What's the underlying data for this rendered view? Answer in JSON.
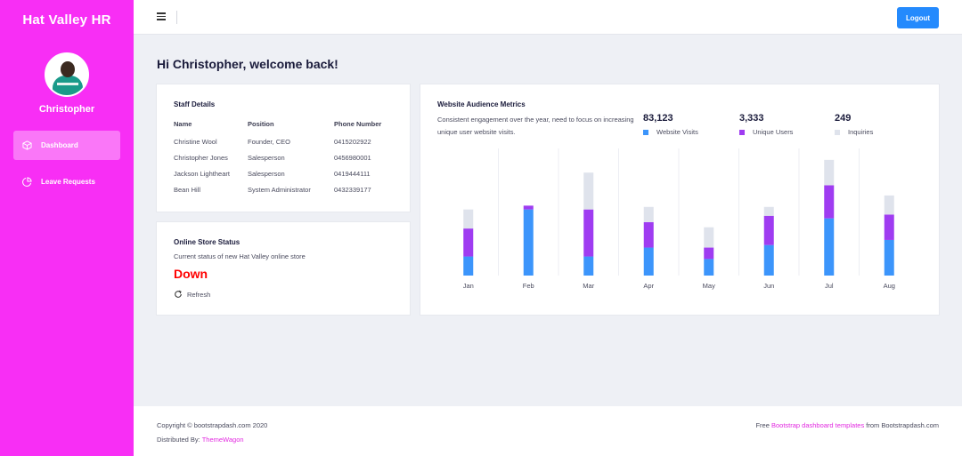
{
  "sidebar": {
    "brand": "Hat Valley HR",
    "username": "Christopher",
    "items": [
      {
        "label": "Dashboard",
        "icon": "cube-icon",
        "active": true
      },
      {
        "label": "Leave Requests",
        "icon": "pie-chart-icon",
        "active": false
      }
    ]
  },
  "header": {
    "logout_label": "Logout"
  },
  "welcome": "Hi Christopher, welcome back!",
  "staff": {
    "title": "Staff Details",
    "columns": [
      "Name",
      "Position",
      "Phone Number"
    ],
    "rows": [
      [
        "Christine Wool",
        "Founder, CEO",
        "0415202922"
      ],
      [
        "Christopher Jones",
        "Salesperson",
        "0456980001"
      ],
      [
        "Jackson Lightheart",
        "Salesperson",
        "0419444111"
      ],
      [
        "Bean Hill",
        "System Administrator",
        "0432339177"
      ]
    ]
  },
  "store": {
    "title": "Online Store Status",
    "description": "Current status of new Hat Valley online store",
    "status": "Down",
    "status_color": "#ff0000",
    "refresh_label": "Refresh"
  },
  "metrics": {
    "title": "Website Audience Metrics",
    "description": "Consistent engagement over the year, need to focus on increasing unique user website visits.",
    "stats": [
      {
        "value": "83,123",
        "label": "Website Visits",
        "color": "#3c95fb"
      },
      {
        "value": "3,333",
        "label": "Unique Users",
        "color": "#9f3cf1"
      },
      {
        "value": "249",
        "label": "Inquiries",
        "color": "#dfe3ec"
      }
    ]
  },
  "chart_data": {
    "type": "bar",
    "stacked": true,
    "categories": [
      "Jan",
      "Feb",
      "Mar",
      "Apr",
      "May",
      "Jun",
      "Jul",
      "Aug"
    ],
    "series": [
      {
        "name": "Website Visits",
        "color": "#3c95fb",
        "values": [
          15,
          52,
          15,
          22,
          13,
          24,
          45,
          28
        ]
      },
      {
        "name": "Unique Users",
        "color": "#9f3cf1",
        "values": [
          22,
          3,
          37,
          20,
          9,
          23,
          26,
          20
        ]
      },
      {
        "name": "Inquiries",
        "color": "#dfe3ec",
        "values": [
          15,
          0,
          29,
          12,
          16,
          7,
          20,
          15
        ]
      }
    ],
    "ylim": [
      0,
      100
    ],
    "grid": true,
    "legend": "top-right"
  },
  "footer": {
    "copyright": "Copyright © bootstrapdash.com 2020",
    "distributed_prefix": "Distributed By: ",
    "distributed_link": "ThemeWagon",
    "right_prefix": "Free ",
    "right_link": "Bootstrap dashboard templates",
    "right_suffix": " from Bootstrapdash.com"
  }
}
